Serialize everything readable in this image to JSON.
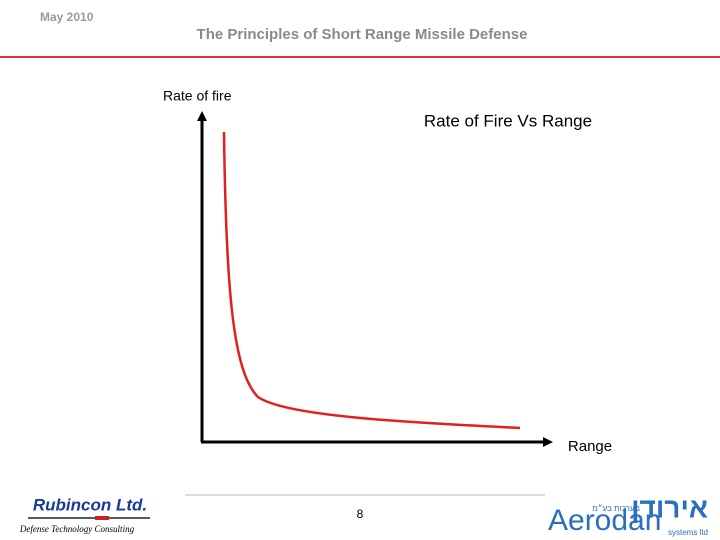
{
  "header": {
    "date": "May 2010",
    "title": "The Principles of Short Range Missile Defense"
  },
  "chart": {
    "title": "Rate of Fire Vs Range",
    "y_label": "Rate of fire",
    "x_label": "Range"
  },
  "footer": {
    "left": {
      "company": "Rubincon Ltd.",
      "tagline": "Defense Technology Consulting"
    },
    "page": "8",
    "right": {
      "logo_text": "Aerodan",
      "hebrew": "אירודן",
      "hebrew_sub": "מערכות בע״מ",
      "sub": "systems ltd"
    }
  }
}
